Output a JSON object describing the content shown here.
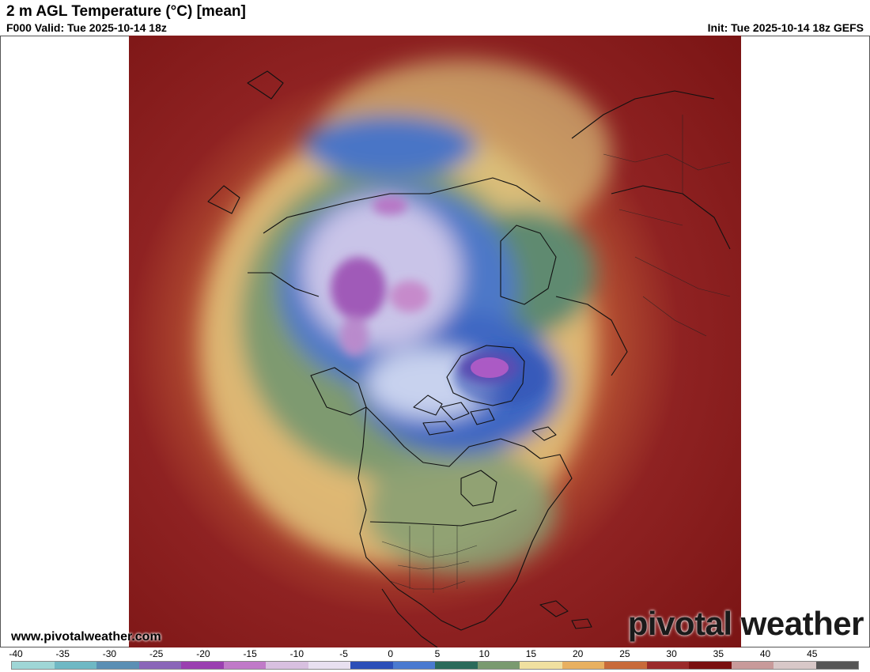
{
  "header": {
    "title": "2 m AGL Temperature (°C) [mean]",
    "valid": "F000 Valid: Tue 2025-10-14 18z",
    "init": "Init: Tue 2025-10-14 18z GEFS"
  },
  "footer": {
    "website": "www.pivotalweather.com",
    "brand": "pivotal weather"
  },
  "legend": {
    "ticks": [
      "-40",
      "-35",
      "-30",
      "-25",
      "-20",
      "-15",
      "-10",
      "-5",
      "0",
      "5",
      "10",
      "15",
      "20",
      "25",
      "30",
      "35",
      "40",
      "45"
    ],
    "min": -40,
    "max": 50,
    "colors": [
      "#9fd6d6",
      "#6fb8c4",
      "#5b8fb4",
      "#8a66b8",
      "#9a3fb0",
      "#c07ac8",
      "#d8c0e0",
      "#e8e0f0",
      "#2c4fb8",
      "#4a7ad0",
      "#2a6a5a",
      "#7a9a70",
      "#f0e0a0",
      "#e8b060",
      "#c86a3a",
      "#9a2a2a",
      "#7a1010",
      "#c89a9a",
      "#d8c8c8",
      "#555555"
    ]
  }
}
